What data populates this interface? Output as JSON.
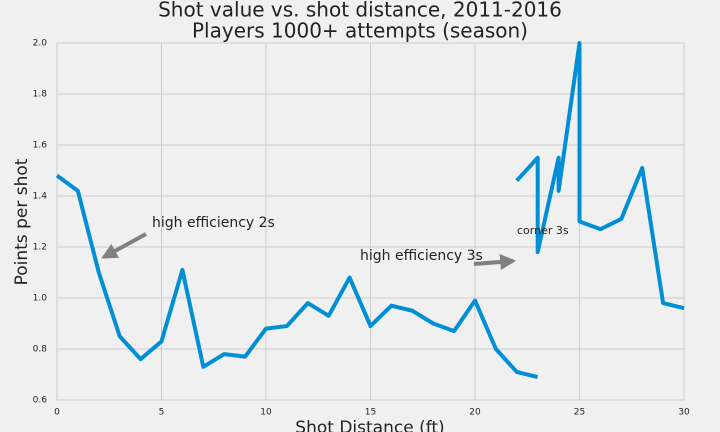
{
  "chart_data": {
    "type": "line",
    "title": "Shot value vs. shot distance, 2011-2016",
    "subtitle": "Players 1000+ attempts (season)",
    "x_label": "Shot Distance (ft)",
    "y_label": "Points per shot",
    "annotations": [
      "high efficiency 2s",
      "high efficiency 3s",
      "corner 3s"
    ],
    "color": "#008fd5",
    "x": [
      0,
      1,
      2,
      3,
      4,
      5,
      6,
      7,
      8,
      9,
      10,
      11,
      12,
      13,
      14,
      15,
      16,
      17,
      18,
      19,
      20,
      21,
      22,
      23,
      null,
      22,
      23,
      23,
      24,
      24,
      25,
      25,
      26,
      27,
      28,
      29,
      30
    ],
    "values": [
      1.48,
      1.42,
      1.1,
      0.85,
      0.76,
      0.83,
      1.11,
      0.73,
      0.78,
      0.77,
      0.88,
      0.89,
      0.98,
      0.93,
      1.08,
      0.89,
      0.97,
      0.95,
      0.9,
      0.87,
      0.99,
      0.8,
      0.71,
      0.69,
      null,
      1.46,
      1.55,
      1.18,
      1.55,
      1.42,
      2.0,
      1.3,
      1.27,
      1.31,
      1.51,
      0.98,
      0.96
    ],
    "xlim": [
      0,
      30
    ],
    "xticks": [
      0,
      5,
      10,
      15,
      20,
      25,
      30
    ],
    "ylim": [
      0.6,
      2.0
    ],
    "yticks": [
      0.6,
      0.8,
      {
        "value": 1.0,
        "label": "1.0"
      },
      1.2,
      1.4,
      1.6,
      1.8,
      {
        "value": 2.0,
        "label": "2.0"
      }
    ],
    "grid": true
  }
}
